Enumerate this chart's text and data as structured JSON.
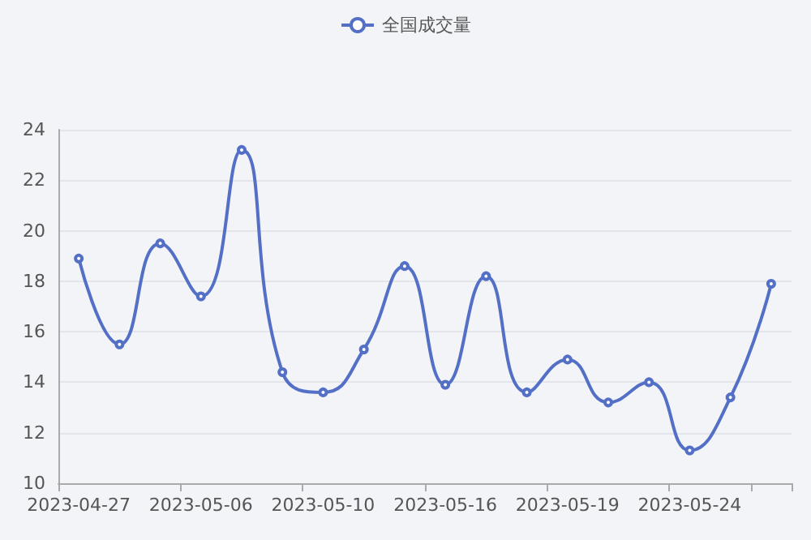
{
  "chart_data": {
    "type": "line",
    "categories": [
      "2023-04-27",
      null,
      null,
      "2023-05-06",
      null,
      null,
      "2023-05-10",
      null,
      null,
      "2023-05-16",
      null,
      null,
      "2023-05-19",
      null,
      null,
      "2023-05-24",
      null,
      null
    ],
    "series": [
      {
        "name": "全国成交量",
        "color": "#5470c6",
        "values": [
          18.9,
          15.5,
          19.5,
          17.4,
          23.2,
          14.4,
          13.6,
          15.3,
          18.6,
          13.9,
          18.2,
          13.6,
          14.9,
          13.2,
          14.0,
          11.3,
          13.4,
          17.9
        ]
      }
    ],
    "ylim": [
      10,
      24
    ],
    "yticks": [
      10,
      12,
      14,
      16,
      18,
      20,
      22,
      24
    ],
    "grid": "y",
    "legend": "top",
    "marker": "circle",
    "line_style": "solid"
  }
}
